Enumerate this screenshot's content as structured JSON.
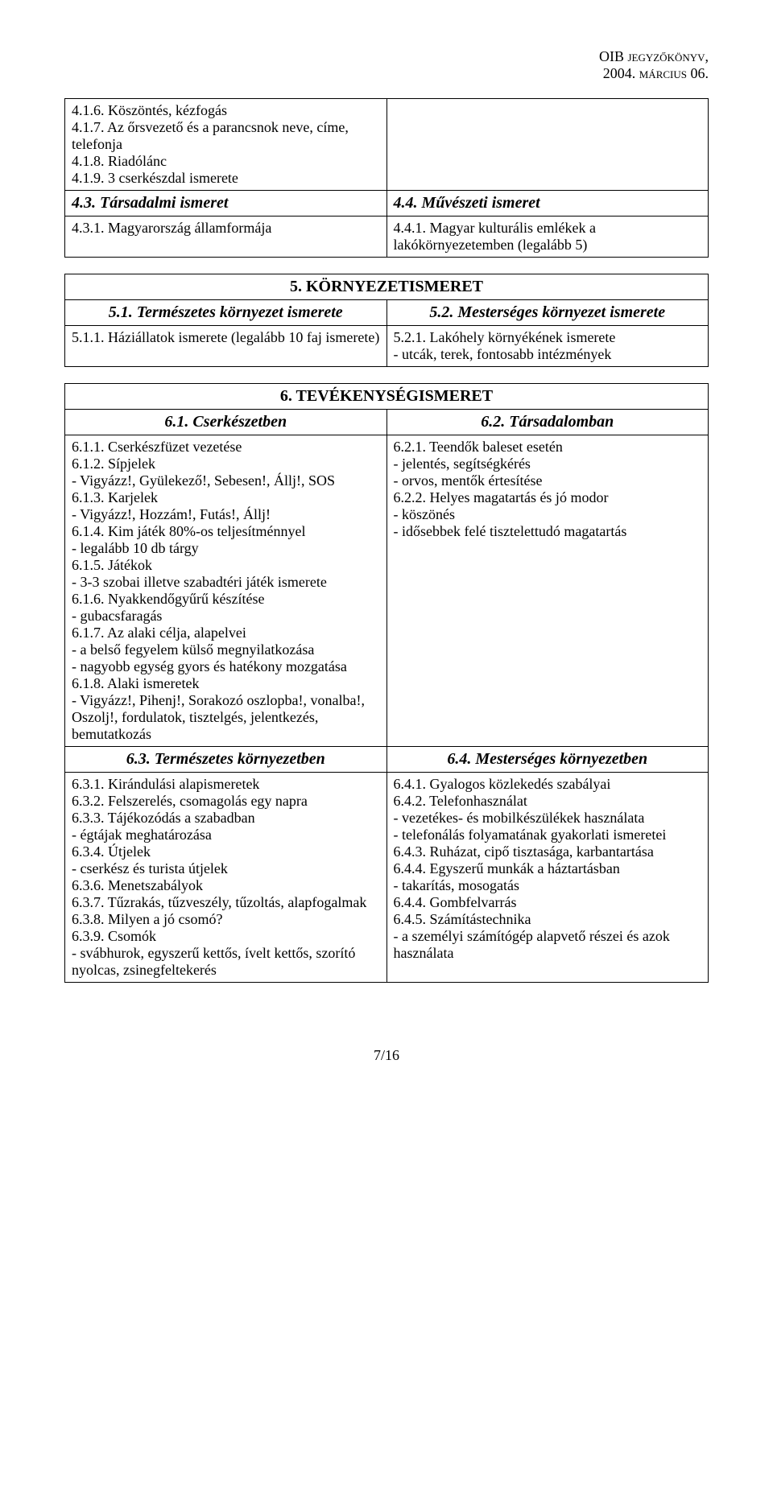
{
  "header": {
    "line1": "OIB jegyzőkönyv,",
    "line2": "2004. március 06."
  },
  "table1": {
    "left": "4.1.6. Köszöntés, kézfogás\n4.1.7. Az őrsvezető és a parancsnok neve, címe, telefonja\n4.1.8. Riadólánc\n4.1.9. 3 cserkészdal ismerete",
    "sec43_left": "4.3. Társadalmi ismeret",
    "sec43_body_left": "4.3.1. Magyarország államformája",
    "sec44_right": "4.4. Művészeti ismeret",
    "sec44_body_right": "4.4.1. Magyar kulturális emlékek a lakókörnyezetemben (legalább 5)"
  },
  "table2": {
    "title": "5. KÖRNYEZETISMERET",
    "sec51": "5.1. Természetes környezet ismerete",
    "sec52": "5.2. Mesterséges környezet ismerete",
    "body_left": "5.1.1. Háziállatok ismerete (legalább 10 faj ismerete)",
    "body_right": "5.2.1. Lakóhely környékének ismerete\n- utcák, terek, fontosabb intézmények"
  },
  "table3": {
    "title": "6. TEVÉKENYSÉGISMERET",
    "sec61": "6.1. Cserkészetben",
    "sec62": "6.2. Társadalomban",
    "body61": "6.1.1. Cserkészfüzet vezetése\n6.1.2. Sípjelek\n- Vigyázz!, Gyülekező!, Sebesen!, Állj!, SOS\n6.1.3. Karjelek\n- Vigyázz!, Hozzám!, Futás!, Állj!\n6.1.4. Kim játék 80%-os teljesítménnyel\n- legalább 10 db tárgy\n6.1.5. Játékok\n- 3-3 szobai illetve szabadtéri játék ismerete\n6.1.6. Nyakkendőgyűrű készítése\n- gubacsfaragás\n6.1.7. Az alaki célja, alapelvei\n- a belső fegyelem külső megnyilatkozása\n- nagyobb egység gyors és hatékony mozgatása\n6.1.8. Alaki ismeretek\n- Vigyázz!, Pihenj!, Sorakozó oszlopba!, vonalba!, Oszolj!, fordulatok, tisztelgés, jelentkezés, bemutatkozás",
    "body62": "6.2.1. Teendők baleset esetén\n- jelentés, segítségkérés\n- orvos, mentők értesítése\n6.2.2. Helyes magatartás és jó modor\n- köszönés\n- idősebbek felé tisztelettudó magatartás",
    "sec63": "6.3. Természetes környezetben",
    "sec64": "6.4. Mesterséges környezetben",
    "body63": "6.3.1. Kirándulási alapismeretek\n6.3.2. Felszerelés, csomagolás egy napra\n6.3.3. Tájékozódás a szabadban\n- égtájak meghatározása\n6.3.4. Útjelek\n- cserkész és turista útjelek\n6.3.6. Menetszabályok\n6.3.7. Tűzrakás, tűzveszély, tűzoltás, alapfogalmak\n6.3.8. Milyen a jó csomó?\n6.3.9. Csomók\n- svábhurok, egyszerű kettős, ívelt kettős, szorító nyolcas, zsinegfeltekerés",
    "body64": "6.4.1. Gyalogos közlekedés szabályai\n6.4.2. Telefonhasználat\n- vezetékes- és mobilkészülékek használata\n- telefonálás folyamatának gyakorlati ismeretei\n6.4.3. Ruházat, cipő tisztasága, karbantartása\n6.4.4. Egyszerű munkák a háztartásban\n- takarítás, mosogatás\n6.4.4. Gombfelvarrás\n6.4.5. Számítástechnika\n- a személyi számítógép alapvető részei és azok használata"
  },
  "footer": "7/16"
}
